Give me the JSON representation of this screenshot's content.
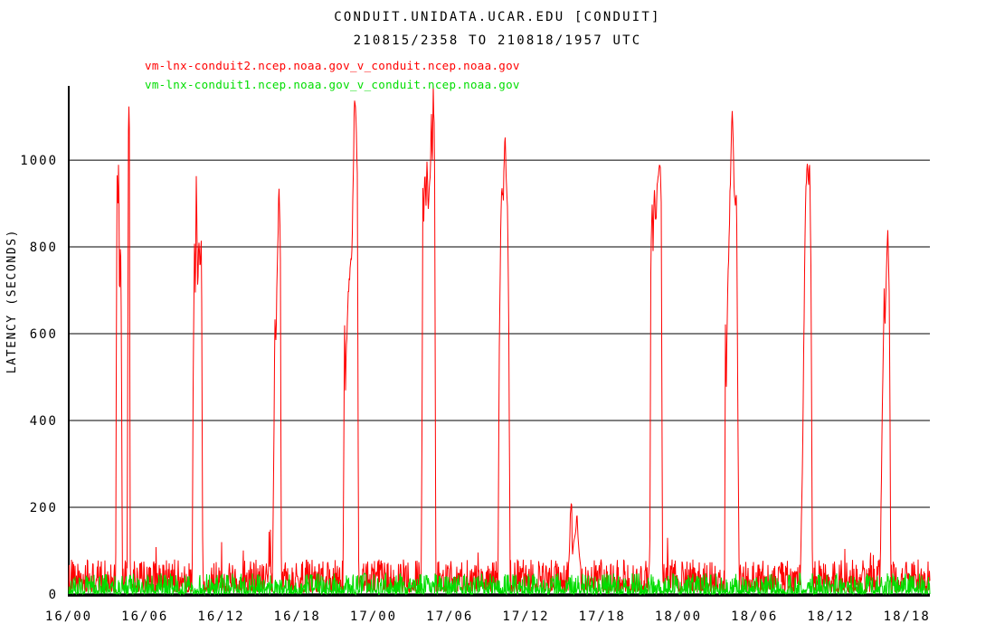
{
  "page": {
    "background": "#ffffff"
  },
  "chart_data": {
    "type": "line",
    "title": "CONDUIT.UNIDATA.UCAR.EDU [CONDUIT]",
    "subtitle": "210815/2358 TO 210818/1957 UTC",
    "ylabel": "LATENCY (SECONDS)",
    "xlabel": "",
    "ylim": [
      0,
      1171
    ],
    "y_ticks": [
      0,
      200,
      400,
      600,
      800,
      1000
    ],
    "x_tick_labels": [
      "16/00",
      "16/06",
      "16/12",
      "16/18",
      "17/00",
      "17/06",
      "17/12",
      "17/18",
      "18/00",
      "18/06",
      "18/12",
      "18/18"
    ],
    "x_tick_hours": [
      0,
      6,
      12,
      18,
      24,
      30,
      36,
      42,
      48,
      54,
      60,
      66
    ],
    "x_span_hours": 67.8,
    "grid": true,
    "grid_color": "#000000",
    "axis_color": "#000000",
    "legend_position": "top-left",
    "series": [
      {
        "name": "vm-lnx-conduit2.ncep.noaa.gov_v_conduit.ncep.noaa.gov",
        "color": "#ff0000",
        "baseline_seconds": {
          "min": 5,
          "max": 80,
          "typical": 38
        },
        "spikes_hours_seconds": [
          [
            [
              3.7,
              60
            ],
            [
              3.76,
              700
            ],
            [
              3.81,
              970
            ],
            [
              3.86,
              880
            ],
            [
              3.93,
              1000
            ],
            [
              4.0,
              670
            ],
            [
              4.08,
              845
            ],
            [
              4.15,
              560
            ],
            [
              4.22,
              60
            ]
          ],
          [
            [
              4.6,
              60
            ],
            [
              4.71,
              1155
            ],
            [
              4.77,
              1085
            ],
            [
              4.84,
              60
            ]
          ],
          [
            [
              9.72,
              60
            ],
            [
              9.8,
              500
            ],
            [
              9.9,
              810
            ],
            [
              9.97,
              700
            ],
            [
              10.05,
              975
            ],
            [
              10.15,
              695
            ],
            [
              10.25,
              815
            ],
            [
              10.35,
              760
            ],
            [
              10.45,
              815
            ],
            [
              10.55,
              60
            ]
          ],
          [
            [
              16.05,
              60
            ],
            [
              16.15,
              350
            ],
            [
              16.24,
              650
            ],
            [
              16.31,
              580
            ],
            [
              16.42,
              760
            ],
            [
              16.55,
              933
            ],
            [
              16.66,
              800
            ],
            [
              16.74,
              60
            ]
          ],
          [
            [
              21.6,
              60
            ],
            [
              21.67,
              430
            ],
            [
              21.73,
              640
            ],
            [
              21.79,
              480
            ],
            [
              21.86,
              560
            ],
            [
              22.0,
              700
            ],
            [
              22.3,
              790
            ],
            [
              22.5,
              1145
            ],
            [
              22.62,
              1085
            ],
            [
              22.72,
              975
            ],
            [
              22.82,
              60
            ]
          ],
          [
            [
              27.75,
              60
            ],
            [
              27.82,
              420
            ],
            [
              27.88,
              950
            ],
            [
              27.96,
              860
            ],
            [
              28.04,
              1000
            ],
            [
              28.12,
              870
            ],
            [
              28.2,
              990
            ],
            [
              28.3,
              900
            ],
            [
              28.45,
              950
            ],
            [
              28.56,
              1100
            ],
            [
              28.62,
              980
            ],
            [
              28.7,
              1160
            ],
            [
              28.8,
              1050
            ],
            [
              28.9,
              60
            ]
          ],
          [
            [
              33.8,
              60
            ],
            [
              33.9,
              560
            ],
            [
              34.0,
              830
            ],
            [
              34.1,
              960
            ],
            [
              34.2,
              900
            ],
            [
              34.35,
              1060
            ],
            [
              34.45,
              950
            ],
            [
              34.55,
              880
            ],
            [
              34.65,
              590
            ],
            [
              34.75,
              60
            ]
          ],
          [
            [
              39.35,
              60
            ],
            [
              39.42,
              100
            ],
            [
              39.52,
              195
            ],
            [
              39.58,
              229
            ],
            [
              39.65,
              85
            ],
            [
              39.75,
              120
            ],
            [
              39.9,
              140
            ],
            [
              40.02,
              177
            ],
            [
              40.1,
              130
            ],
            [
              40.2,
              90
            ],
            [
              40.32,
              60
            ]
          ],
          [
            [
              45.75,
              60
            ],
            [
              45.83,
              760
            ],
            [
              45.93,
              900
            ],
            [
              46.01,
              800
            ],
            [
              46.11,
              930
            ],
            [
              46.21,
              850
            ],
            [
              46.35,
              950
            ],
            [
              46.55,
              998
            ],
            [
              46.65,
              900
            ],
            [
              46.75,
              60
            ]
          ],
          [
            [
              51.64,
              60
            ],
            [
              51.7,
              620
            ],
            [
              51.76,
              450
            ],
            [
              51.84,
              640
            ],
            [
              52.05,
              900
            ],
            [
              52.25,
              1135
            ],
            [
              52.38,
              950
            ],
            [
              52.48,
              900
            ],
            [
              52.58,
              930
            ],
            [
              52.68,
              430
            ],
            [
              52.78,
              60
            ]
          ],
          [
            [
              57.6,
              40
            ],
            [
              57.75,
              250
            ],
            [
              57.88,
              600
            ],
            [
              58.0,
              900
            ],
            [
              58.14,
              1008
            ],
            [
              58.24,
              950
            ],
            [
              58.34,
              1000
            ],
            [
              58.45,
              700
            ],
            [
              58.55,
              50
            ]
          ],
          [
            [
              63.9,
              60
            ],
            [
              64.0,
              300
            ],
            [
              64.1,
              500
            ],
            [
              64.2,
              700
            ],
            [
              64.28,
              620
            ],
            [
              64.4,
              790
            ],
            [
              64.5,
              830
            ],
            [
              64.58,
              740
            ],
            [
              64.65,
              500
            ],
            [
              64.72,
              60
            ]
          ]
        ]
      },
      {
        "name": "vm-lnx-conduit1.ncep.noaa.gov_v_conduit.ncep.noaa.gov",
        "color": "#00dd00",
        "baseline_seconds": {
          "min": 0,
          "max": 48,
          "typical": 15
        },
        "spikes_hours_seconds": []
      }
    ]
  }
}
